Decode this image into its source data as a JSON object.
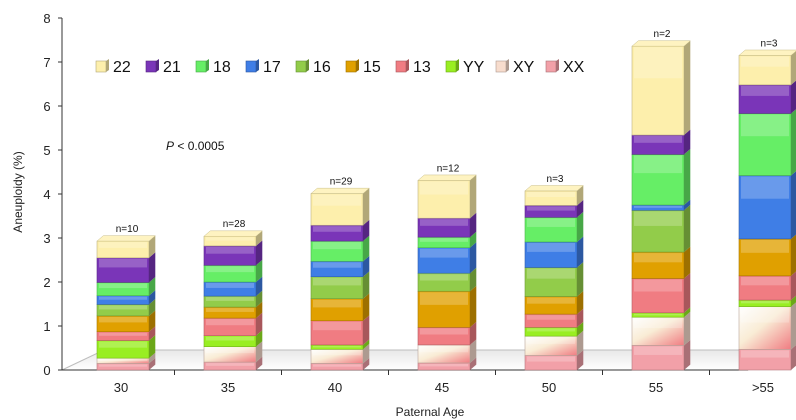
{
  "chart_data": {
    "type": "bar",
    "stacked": true,
    "style": "3d-columns",
    "xlabel": "Paternal Age",
    "ylabel": "Aneuploidy (%)",
    "ylim": [
      0,
      8
    ],
    "yticks": [
      "0",
      "1",
      "2",
      "3",
      "4",
      "5",
      "6",
      "7",
      "8"
    ],
    "categories": [
      "30",
      "35",
      "40",
      "45",
      "50",
      "55",
      ">55"
    ],
    "sample_sizes": [
      "n=10",
      "n=28",
      "n=29",
      "n=12",
      "n=3",
      "n=2",
      "n=3"
    ],
    "annotation": {
      "italic": "P",
      "rest": " < 0.0005"
    },
    "legend_placement": "top-left",
    "legend_order": [
      "22",
      "21",
      "18",
      "17",
      "16",
      "15",
      "13",
      "YY",
      "XY",
      "XX"
    ],
    "series": [
      {
        "name": "XX",
        "color": "#f2a0a8",
        "values": [
          0.15,
          0.18,
          0.15,
          0.16,
          0.33,
          0.56,
          0.47
        ]
      },
      {
        "name": "XY",
        "color": "#f7dccd",
        "values": [
          0.12,
          0.35,
          0.32,
          0.41,
          0.44,
          0.64,
          0.97
        ]
      },
      {
        "name": "YY",
        "color": "#99ee22",
        "values": [
          0.4,
          0.25,
          0.1,
          0.0,
          0.2,
          0.1,
          0.15
        ]
      },
      {
        "name": "13",
        "color": "#f07c82",
        "values": [
          0.2,
          0.4,
          0.55,
          0.4,
          0.3,
          0.78,
          0.55
        ]
      },
      {
        "name": "15",
        "color": "#e0a000",
        "values": [
          0.36,
          0.25,
          0.5,
          0.82,
          0.4,
          0.6,
          0.84
        ]
      },
      {
        "name": "16",
        "color": "#92cc4a",
        "values": [
          0.26,
          0.25,
          0.5,
          0.41,
          0.66,
          0.95,
          0.0
        ]
      },
      {
        "name": "17",
        "color": "#3f7ee6",
        "values": [
          0.2,
          0.32,
          0.35,
          0.58,
          0.58,
          0.12,
          1.44
        ]
      },
      {
        "name": "18",
        "color": "#66ee66",
        "values": [
          0.3,
          0.38,
          0.46,
          0.24,
          0.56,
          1.15,
          1.41
        ]
      },
      {
        "name": "21",
        "color": "#7a35b8",
        "values": [
          0.56,
          0.44,
          0.36,
          0.43,
          0.27,
          0.44,
          0.65
        ]
      },
      {
        "name": "22",
        "color": "#fdefac",
        "values": [
          0.38,
          0.22,
          0.72,
          0.86,
          0.33,
          2.02,
          0.67
        ]
      }
    ]
  }
}
